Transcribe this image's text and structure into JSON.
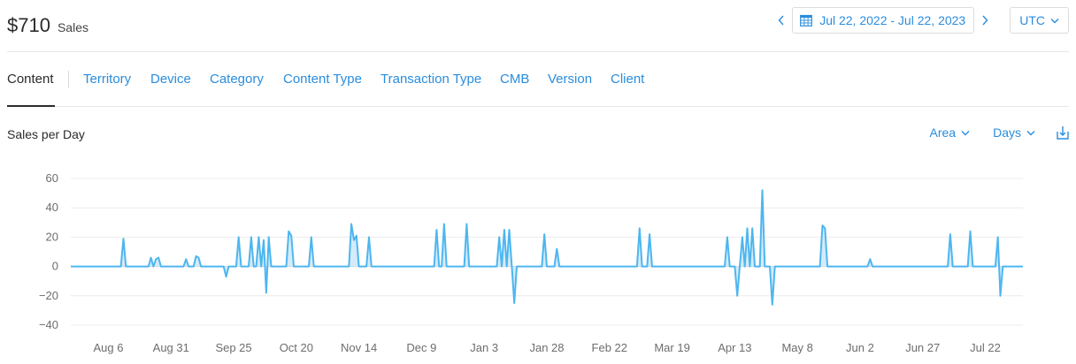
{
  "summary": {
    "amount": "$710",
    "label": "Sales"
  },
  "date_range": {
    "label": "Jul 22, 2022 - Jul 22, 2023",
    "icon": "calendar-icon"
  },
  "timezone": {
    "value": "UTC"
  },
  "tabs": [
    {
      "label": "Content",
      "active": true
    },
    {
      "label": "Territory"
    },
    {
      "label": "Device"
    },
    {
      "label": "Category"
    },
    {
      "label": "Content Type"
    },
    {
      "label": "Transaction Type"
    },
    {
      "label": "CMB"
    },
    {
      "label": "Version"
    },
    {
      "label": "Client"
    }
  ],
  "chart_section": {
    "title": "Sales per Day",
    "chart_type_label": "Area",
    "granularity_label": "Days",
    "download_icon": "download-icon"
  },
  "colors": {
    "accent": "#2a8ddd",
    "series_line": "#4db6ef",
    "series_fill": "#cfe9fa"
  },
  "chart_data": {
    "type": "area",
    "title": "Sales per Day",
    "xlabel": "",
    "ylabel": "",
    "ylim": [
      -40,
      60
    ],
    "yticks": [
      60,
      40,
      20,
      0,
      -20,
      -40
    ],
    "xticks": [
      "Aug 6",
      "Aug 31",
      "Sep 25",
      "Oct 20",
      "Nov 14",
      "Dec 9",
      "Jan 3",
      "Jan 28",
      "Feb 22",
      "Mar 19",
      "Apr 13",
      "May 8",
      "Jun 2",
      "Jun 27",
      "Jul 22"
    ],
    "grid": true,
    "legend": "none",
    "start_date": "2022-07-22",
    "points": [
      [
        "2022-07-22",
        0
      ],
      [
        "2022-08-11",
        0
      ],
      [
        "2022-08-12",
        19
      ],
      [
        "2022-08-13",
        0
      ],
      [
        "2022-08-22",
        0
      ],
      [
        "2022-08-23",
        6
      ],
      [
        "2022-08-24",
        0
      ],
      [
        "2022-08-25",
        5
      ],
      [
        "2022-08-26",
        6
      ],
      [
        "2022-08-27",
        0
      ],
      [
        "2022-09-05",
        0
      ],
      [
        "2022-09-06",
        5
      ],
      [
        "2022-09-07",
        0
      ],
      [
        "2022-09-09",
        0
      ],
      [
        "2022-09-10",
        7
      ],
      [
        "2022-09-11",
        6
      ],
      [
        "2022-09-12",
        0
      ],
      [
        "2022-09-21",
        0
      ],
      [
        "2022-09-22",
        -7
      ],
      [
        "2022-09-23",
        0
      ],
      [
        "2022-09-26",
        0
      ],
      [
        "2022-09-27",
        20
      ],
      [
        "2022-09-28",
        0
      ],
      [
        "2022-10-01",
        0
      ],
      [
        "2022-10-02",
        20
      ],
      [
        "2022-10-03",
        0
      ],
      [
        "2022-10-04",
        0
      ],
      [
        "2022-10-05",
        20
      ],
      [
        "2022-10-06",
        0
      ],
      [
        "2022-10-07",
        18
      ],
      [
        "2022-10-08",
        -18
      ],
      [
        "2022-10-09",
        20
      ],
      [
        "2022-10-10",
        0
      ],
      [
        "2022-10-16",
        0
      ],
      [
        "2022-10-17",
        24
      ],
      [
        "2022-10-18",
        21
      ],
      [
        "2022-10-19",
        0
      ],
      [
        "2022-10-25",
        0
      ],
      [
        "2022-10-26",
        20
      ],
      [
        "2022-10-27",
        0
      ],
      [
        "2022-11-10",
        0
      ],
      [
        "2022-11-11",
        29
      ],
      [
        "2022-11-12",
        18
      ],
      [
        "2022-11-13",
        21
      ],
      [
        "2022-11-14",
        0
      ],
      [
        "2022-11-17",
        0
      ],
      [
        "2022-11-18",
        20
      ],
      [
        "2022-11-19",
        0
      ],
      [
        "2022-12-14",
        0
      ],
      [
        "2022-12-15",
        25
      ],
      [
        "2022-12-16",
        0
      ],
      [
        "2022-12-17",
        0
      ],
      [
        "2022-12-18",
        29
      ],
      [
        "2022-12-19",
        0
      ],
      [
        "2022-12-26",
        0
      ],
      [
        "2022-12-27",
        29
      ],
      [
        "2022-12-28",
        0
      ],
      [
        "2023-01-08",
        0
      ],
      [
        "2023-01-09",
        20
      ],
      [
        "2023-01-10",
        0
      ],
      [
        "2023-01-11",
        25
      ],
      [
        "2023-01-12",
        0
      ],
      [
        "2023-01-13",
        25
      ],
      [
        "2023-01-14",
        0
      ],
      [
        "2023-01-15",
        -25
      ],
      [
        "2023-01-16",
        0
      ],
      [
        "2023-01-26",
        0
      ],
      [
        "2023-01-27",
        22
      ],
      [
        "2023-01-28",
        0
      ],
      [
        "2023-01-31",
        0
      ],
      [
        "2023-02-01",
        12
      ],
      [
        "2023-02-02",
        0
      ],
      [
        "2023-03-05",
        0
      ],
      [
        "2023-03-06",
        26
      ],
      [
        "2023-03-07",
        0
      ],
      [
        "2023-03-09",
        0
      ],
      [
        "2023-03-10",
        22
      ],
      [
        "2023-03-11",
        0
      ],
      [
        "2023-04-09",
        0
      ],
      [
        "2023-04-10",
        20
      ],
      [
        "2023-04-11",
        0
      ],
      [
        "2023-04-13",
        0
      ],
      [
        "2023-04-14",
        -20
      ],
      [
        "2023-04-15",
        0
      ],
      [
        "2023-04-16",
        20
      ],
      [
        "2023-04-17",
        0
      ],
      [
        "2023-04-18",
        26
      ],
      [
        "2023-04-19",
        0
      ],
      [
        "2023-04-20",
        26
      ],
      [
        "2023-04-21",
        0
      ],
      [
        "2023-04-23",
        0
      ],
      [
        "2023-04-24",
        52
      ],
      [
        "2023-04-25",
        0
      ],
      [
        "2023-04-27",
        0
      ],
      [
        "2023-04-28",
        -26
      ],
      [
        "2023-04-29",
        0
      ],
      [
        "2023-05-17",
        0
      ],
      [
        "2023-05-18",
        28
      ],
      [
        "2023-05-19",
        26
      ],
      [
        "2023-05-20",
        0
      ],
      [
        "2023-06-05",
        0
      ],
      [
        "2023-06-06",
        5
      ],
      [
        "2023-06-07",
        0
      ],
      [
        "2023-07-07",
        0
      ],
      [
        "2023-07-08",
        22
      ],
      [
        "2023-07-09",
        0
      ],
      [
        "2023-07-15",
        0
      ],
      [
        "2023-07-16",
        24
      ],
      [
        "2023-07-17",
        0
      ],
      [
        "2023-07-26",
        0
      ],
      [
        "2023-07-27",
        20
      ],
      [
        "2023-07-28",
        -20
      ],
      [
        "2023-07-29",
        0
      ],
      [
        "2023-08-06",
        0
      ]
    ]
  }
}
